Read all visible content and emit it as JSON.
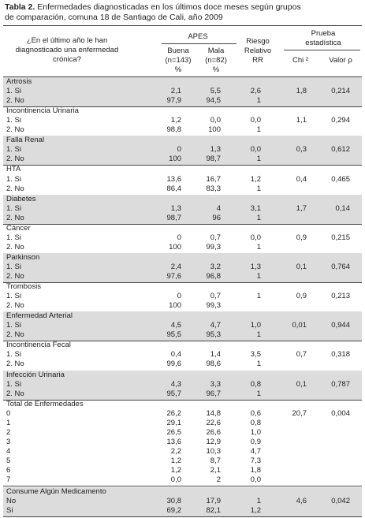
{
  "title": {
    "label": "Tabla 2.",
    "text": "Enfermedades diagnosticadas en los últimos doce meses según grupos",
    "text2": "de comparación, comuna 18 de Santiago de Cali, año 2009"
  },
  "header": {
    "question": [
      "¿En el último año le han",
      "diagnosticado una enfermedad",
      "crónica?"
    ],
    "apes": "APES",
    "buena": [
      "Buena",
      "(n=143)",
      "%"
    ],
    "mala": [
      "Mala",
      "(n=82)",
      "%"
    ],
    "rr": [
      "Riesgo",
      "Relativo",
      "RR"
    ],
    "prueba": [
      "Prueba",
      "estadística"
    ],
    "chi": "Chi ²",
    "p": "Valor ρ"
  },
  "sections": [
    {
      "name": "Artrosis",
      "shaded": true,
      "chi": "1,8",
      "p": "0,214",
      "rows": [
        {
          "label": "1. Si",
          "buena": "2,1",
          "mala": "5,5",
          "rr": "2,6"
        },
        {
          "label": "2. No",
          "buena": "97,9",
          "mala": "94,5",
          "rr": "1"
        }
      ]
    },
    {
      "name": "Incontinencia Urinaria",
      "shaded": false,
      "chi": "1,1",
      "p": "0,294",
      "rows": [
        {
          "label": "1. Si",
          "buena": "1,2",
          "mala": "0,0",
          "rr": "0,0"
        },
        {
          "label": "2. No",
          "buena": "98,8",
          "mala": "100",
          "rr": "1"
        }
      ]
    },
    {
      "name": "Falla Renal",
      "shaded": true,
      "chi": "0,3",
      "p": "0,612",
      "rows": [
        {
          "label": "1. Si",
          "buena": "0",
          "mala": "1,3",
          "rr": "0,0"
        },
        {
          "label": "2. No",
          "buena": "100",
          "mala": "98,7",
          "rr": "1"
        }
      ]
    },
    {
      "name": "HTA",
      "shaded": false,
      "chi": "0,4",
      "p": "0,465",
      "rows": [
        {
          "label": "1. Si",
          "buena": "13,6",
          "mala": "16,7",
          "rr": "1,2"
        },
        {
          "label": "2. No",
          "buena": "86,4",
          "mala": "83,3",
          "rr": "1"
        }
      ]
    },
    {
      "name": "Diabetes",
      "shaded": true,
      "chi": "1,7",
      "p": "0,14",
      "rows": [
        {
          "label": "1. Si",
          "buena": "1,3",
          "mala": "4",
          "rr": "3,1"
        },
        {
          "label": "2. No",
          "buena": "98,7",
          "mala": "96",
          "rr": "1"
        }
      ]
    },
    {
      "name": "Cáncer",
      "shaded": false,
      "chi": "0,9",
      "p": "0,215",
      "rows": [
        {
          "label": "1. Si",
          "buena": "0",
          "mala": "0,7",
          "rr": "0,0"
        },
        {
          "label": "2. No",
          "buena": "100",
          "mala": "99,3",
          "rr": "1"
        }
      ]
    },
    {
      "name": "Parkinson",
      "shaded": true,
      "chi": "0,1",
      "p": "0,764",
      "rows": [
        {
          "label": "1. Si",
          "buena": "2,4",
          "mala": "3,2",
          "rr": "1,3"
        },
        {
          "label": "2. No",
          "buena": "97,6",
          "mala": "96,8",
          "rr": "1"
        }
      ]
    },
    {
      "name": "Trombosis",
      "shaded": false,
      "chi": "0,9",
      "p": "0,213",
      "rows": [
        {
          "label": "1. Si",
          "buena": "0",
          "mala": "0,7",
          "rr": "1"
        },
        {
          "label": "2. No",
          "buena": "100",
          "mala": "99,3",
          "rr": null
        }
      ]
    },
    {
      "name": "Enfermedad Arterial",
      "shaded": true,
      "chi": "0,01",
      "p": "0,944",
      "rows": [
        {
          "label": "1. Si",
          "buena": "4,5",
          "mala": "4,7",
          "rr": "1,0"
        },
        {
          "label": "2. No",
          "buena": "95,5",
          "mala": "95,3",
          "rr": "1"
        }
      ]
    },
    {
      "name": "Incontinencia Fecal",
      "shaded": false,
      "chi": "0,7",
      "p": "0,318",
      "rows": [
        {
          "label": "1. Si",
          "buena": "0,4",
          "mala": "1,4",
          "rr": "3,5"
        },
        {
          "label": "2. No",
          "buena": "99,6",
          "mala": "98,6",
          "rr": "1"
        }
      ]
    },
    {
      "name": "Infección Urinaria",
      "shaded": true,
      "chi": "0,1",
      "p": "0,787",
      "rows": [
        {
          "label": "1. Si",
          "buena": "4,3",
          "mala": "3,3",
          "rr": "0,8"
        },
        {
          "label": "2. No",
          "buena": "95,7",
          "mala": "96,7",
          "rr": "1"
        }
      ]
    },
    {
      "name": "Total de Enfermedades",
      "shaded": false,
      "chi": "20,7",
      "p": "0,004",
      "rows": [
        {
          "label": "0",
          "buena": "26,2",
          "mala": "14,8",
          "rr": "0,6"
        },
        {
          "label": "1",
          "buena": "29,1",
          "mala": "22,6",
          "rr": "0,8"
        },
        {
          "label": "2",
          "buena": "26,5",
          "mala": "26,6",
          "rr": "1,0"
        },
        {
          "label": "3",
          "buena": "13,6",
          "mala": "12,9",
          "rr": "0,9"
        },
        {
          "label": "4",
          "buena": "2,2",
          "mala": "10,3",
          "rr": "4,7"
        },
        {
          "label": "5",
          "buena": "1,2",
          "mala": "8,7",
          "rr": "7,3"
        },
        {
          "label": "6",
          "buena": "1,2",
          "mala": "2,1",
          "rr": "1,8"
        },
        {
          "label": "7",
          "buena": "0,0",
          "mala": "2",
          "rr": "0,0"
        }
      ]
    },
    {
      "name": "Consume Algún Medicamento",
      "shaded": true,
      "chi": "4,6",
      "p": "0,042",
      "rows": [
        {
          "label": "No",
          "buena": "30,8",
          "mala": "17,9",
          "rr": "1"
        },
        {
          "label": "Si",
          "buena": "69,2",
          "mala": "82,1",
          "rr": "1,2"
        }
      ]
    }
  ]
}
